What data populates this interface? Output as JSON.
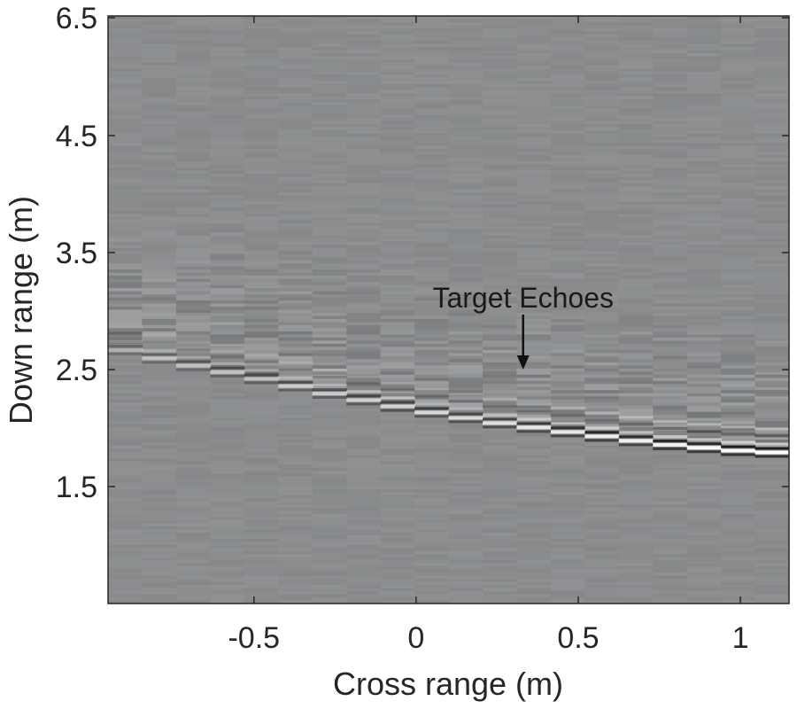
{
  "chart_data": {
    "type": "heatmap",
    "title": "",
    "xlabel": "Cross range (m)",
    "ylabel": "Down range (m)",
    "xlim": [
      -0.95,
      1.15
    ],
    "ylim": [
      0.5,
      6.5
    ],
    "xticks": [
      -0.5,
      0,
      0.5,
      1
    ],
    "xtick_labels": [
      "-0.5",
      "0",
      "0.5",
      "1"
    ],
    "yticks": [
      1.5,
      2.5,
      3.5,
      4.5,
      6.5
    ],
    "ytick_labels": [
      "1.5",
      "2.5",
      "3.5",
      "4.5",
      "6.5"
    ],
    "colormap": "gray",
    "grid": false,
    "target_echo_curve": {
      "cross_range": [
        -0.95,
        -0.75,
        -0.5,
        -0.25,
        0,
        0.25,
        0.5,
        0.75,
        1,
        1.15
      ],
      "down_range": [
        2.72,
        2.58,
        2.45,
        2.3,
        2.17,
        2.06,
        1.97,
        1.88,
        1.82,
        1.8
      ]
    },
    "annotations": [
      {
        "text": "Target Echoes",
        "points_to": {
          "x": 0.33,
          "y": 2.5
        }
      }
    ]
  },
  "colors": {
    "background": "#8a8c8e",
    "axis": "#262626",
    "echo_bright": "#ffffff",
    "echo_dark": "#111111"
  }
}
